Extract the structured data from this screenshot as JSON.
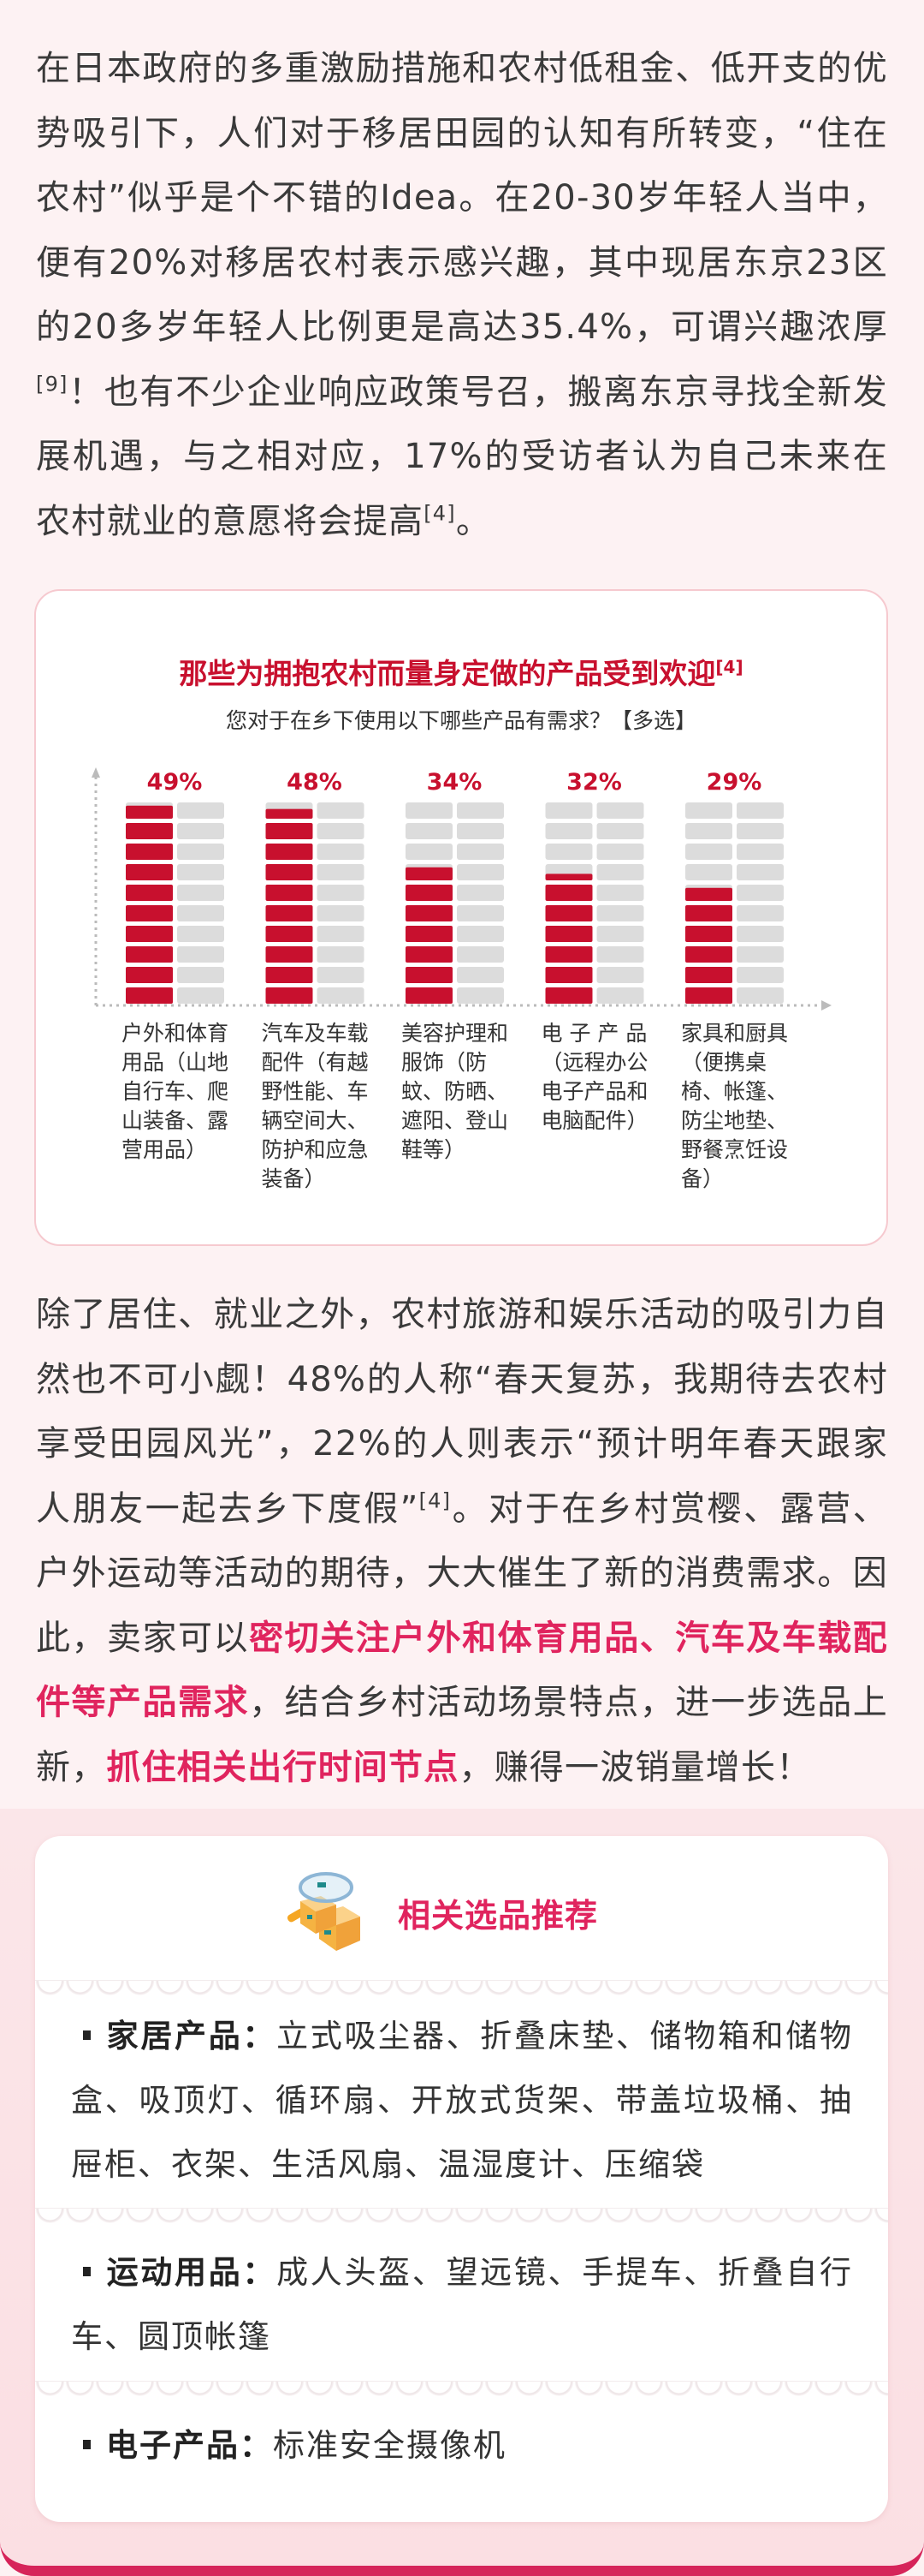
{
  "paragraph1": {
    "seg1": "在日本政府的多重激励措施和农村低租金、低开支的优势吸引下，人们对于移居田园的认知有所转变，“住在农村”似乎是个不错的Idea。在20-30岁年轻人当中，便有20%对移居农村表示感兴趣，其中现居东京23区的20多岁年轻人比例更是高达35.4%，可谓兴趣浓厚",
    "ref1": "[9]",
    "seg2": "！也有不少企业响应政策号召，搬离东京寻找全新发展机遇，与之相对应，17%的受访者认为自己未来在农村就业的意愿将会提高",
    "ref2": "[4]",
    "seg3": "。"
  },
  "chart_data": {
    "type": "bar",
    "title": "那些为拥抱农村而量身定做的产品受到欢迎",
    "title_ref": "[4]",
    "subtitle": "您对于在乡下使用以下哪些产品有需求？【多选】",
    "categories": [
      "户外和体育用品（山地自行车、爬山装备、露营用品）",
      "汽车及车载配件（有越野性能、车辆空间大、防护和应急装备）",
      "美容护理和服饰（防蚊、防晒、遮阳、登山鞋等）",
      "电 子 产 品（远程办公电子产品和电脑配件）",
      "家具和厨具（便携桌椅、帐篷、防尘地垫、野餐烹饪设备）"
    ],
    "values": [
      49,
      48,
      34,
      32,
      29
    ],
    "value_labels": [
      "49%",
      "48%",
      "34%",
      "32%",
      "29%"
    ],
    "unit": "%",
    "ylim": [
      0,
      50
    ],
    "colors": {
      "filled": "#c8102e",
      "empty": "#dcdcdc",
      "label": "#c8102e"
    }
  },
  "paragraph2": {
    "seg1": "除了居住、就业之外，农村旅游和娱乐活动的吸引力自然也不可小觑！48%的人称“春天复苏，我期待去农村享受田园风光”，22%的人则表示“预计明年春天跟家人朋友一起去乡下度假”",
    "ref1": "[4]",
    "seg2": "。对于在乡村赏樱、露营、户外运动等活动的期待，大大催生了新的消费需求。因此，卖家可以",
    "hl1": "密切关注户外和体育用品、汽车及车载配件等产品需求",
    "seg3": "，结合乡村活动场景特点，进一步选品上新，",
    "hl2": "抓住相关出行时间节点",
    "seg4": "，赚得一波销量增长！"
  },
  "recommend": {
    "icon": "boxes-magnifier-icon",
    "title": "相关选品推荐",
    "items": [
      {
        "label": "家居产品：",
        "text": "立式吸尘器、折叠床垫、储物箱和储物盒、吸顶灯、循环扇、开放式货架、带盖垃圾桶、抽屉柜、衣架、生活风扇、温湿度计、压缩袋"
      },
      {
        "label": "运动用品：",
        "text": "成人头盔、望远镜、手提车、折叠自行车、圆顶帐篷"
      },
      {
        "label": "电子产品：",
        "text": "标准安全摄像机"
      }
    ]
  },
  "colors": {
    "accent": "#e0245e",
    "chart_red": "#c8102e",
    "background": "#fdf2f3"
  }
}
